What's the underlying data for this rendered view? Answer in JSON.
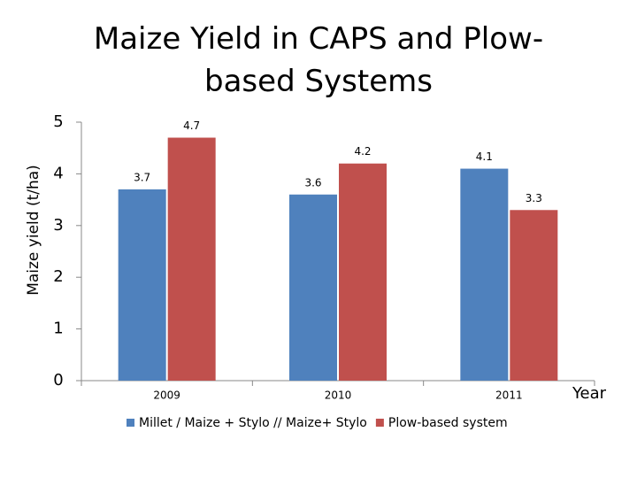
{
  "chart_data": {
    "type": "bar",
    "title": "Maize Yield in CAPS and Plow-based Systems",
    "y_label": "Maize yield (t/ha)",
    "x_label": "Year",
    "categories": [
      "2009",
      "2010",
      "2011"
    ],
    "series": [
      {
        "name": "Millet / Maize + Stylo // Maize+ Stylo",
        "color": "#4f81bd",
        "values": [
          3.7,
          3.6,
          4.1
        ]
      },
      {
        "name": "Plow-based system",
        "color": "#c0504d",
        "values": [
          4.7,
          4.2,
          3.3
        ]
      }
    ],
    "ylim": [
      0,
      5
    ],
    "yticks": [
      0,
      1,
      2,
      3,
      4,
      5
    ],
    "legend": "bottom"
  }
}
